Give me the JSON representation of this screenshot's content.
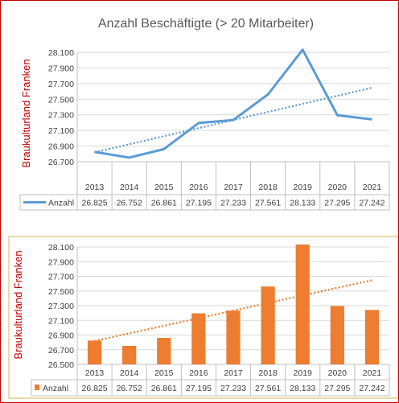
{
  "chart_data": [
    {
      "type": "line",
      "title": "Anzahl Beschäftigte (> 20 Mitarbeiter)",
      "ylabel": "Braukulturland Franken",
      "xlabel": "",
      "categories": [
        "2013",
        "2014",
        "2015",
        "2016",
        "2017",
        "2018",
        "2019",
        "2020",
        "2021"
      ],
      "series": [
        {
          "name": "Anzahl",
          "values": [
            26825,
            26752,
            26861,
            27195,
            27233,
            27561,
            28133,
            27295,
            27242
          ],
          "labels": [
            "26.825",
            "26.752",
            "26.861",
            "27.195",
            "27.233",
            "27.561",
            "28.133",
            "27.295",
            "27.242"
          ]
        }
      ],
      "trendline": "linear",
      "ylim": [
        26700,
        28100
      ],
      "yticks": [
        26700,
        26900,
        27100,
        27300,
        27500,
        27700,
        27900,
        28100
      ],
      "ytick_labels": [
        "26.700",
        "26.900",
        "27.100",
        "27.300",
        "27.500",
        "27.700",
        "27.900",
        "28.100"
      ],
      "grid": true,
      "data_table": true,
      "color": "#5b9bd5"
    },
    {
      "type": "bar",
      "title": "",
      "ylabel": "Braukulturland Franken",
      "xlabel": "",
      "categories": [
        "2013",
        "2014",
        "2015",
        "2016",
        "2017",
        "2018",
        "2019",
        "2020",
        "2021"
      ],
      "series": [
        {
          "name": "Anzahl",
          "values": [
            26825,
            26752,
            26861,
            27195,
            27233,
            27561,
            28133,
            27295,
            27242
          ],
          "labels": [
            "26.825",
            "26.752",
            "26.861",
            "27.195",
            "27.233",
            "27.561",
            "28.133",
            "27.295",
            "27.242"
          ]
        }
      ],
      "trendline": "linear",
      "ylim": [
        26500,
        28100
      ],
      "yticks": [
        26500,
        26700,
        26900,
        27100,
        27300,
        27500,
        27700,
        27900,
        28100
      ],
      "ytick_labels": [
        "26.500",
        "26.700",
        "26.900",
        "27.100",
        "27.300",
        "27.500",
        "27.700",
        "27.900",
        "28.100"
      ],
      "grid": true,
      "data_table": true,
      "color": "#ed7d31"
    }
  ]
}
